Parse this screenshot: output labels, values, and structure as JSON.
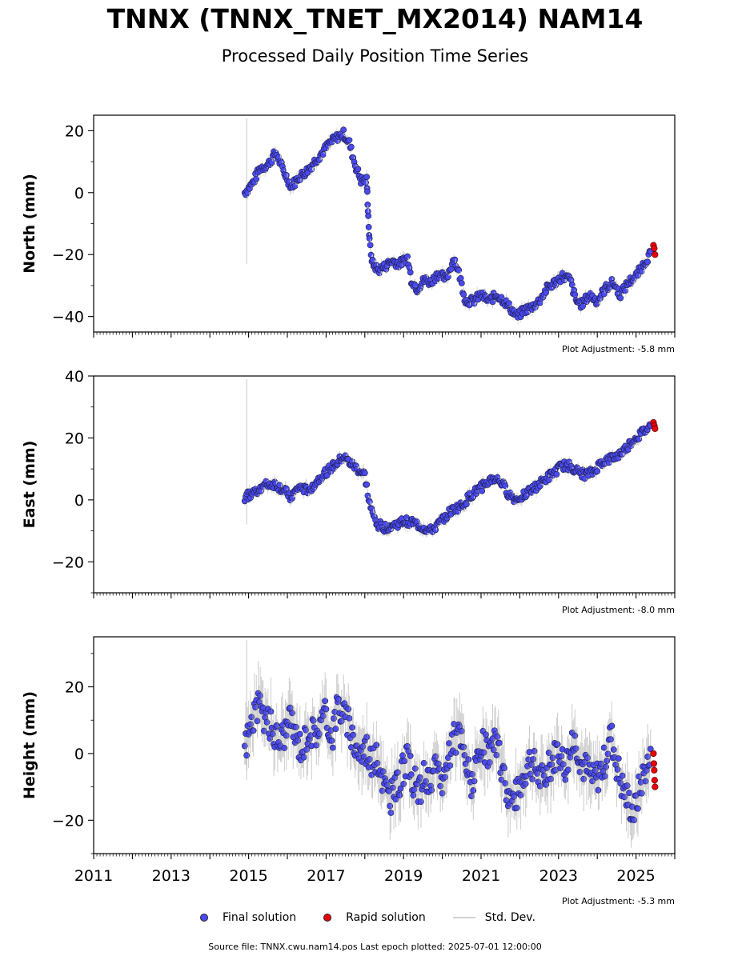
{
  "header": {
    "title": "TNNX (TNNX_TNET_MX2014) NAM14",
    "subtitle": "Processed Daily Position Time Series"
  },
  "legend": {
    "final": "Final solution",
    "rapid": "Rapid solution",
    "std": "Std. Dev."
  },
  "footer": {
    "source": "Source file: TNNX.cwu.nam14.pos  Last epoch plotted: 2025-07-01 12:00:00"
  },
  "colors": {
    "final": "#4a4af0",
    "rapid": "#e8000b",
    "std": "#d3d3d3"
  },
  "chart_data": [
    {
      "type": "scatter",
      "ylabel": "North (mm)",
      "adjustment": "Plot Adjustment: -5.8 mm",
      "xlim": [
        2011,
        2026
      ],
      "ylim": [
        -45,
        25
      ],
      "yticks": [
        -40,
        -20,
        0,
        20
      ],
      "series": [
        {
          "name": "Final solution",
          "x": [
            2014.9,
            2015.1,
            2015.3,
            2015.5,
            2015.7,
            2015.9,
            2016.1,
            2016.3,
            2016.5,
            2016.7,
            2016.9,
            2017.1,
            2017.3,
            2017.45,
            2017.6,
            2017.75,
            2017.9,
            2018.05,
            2018.08,
            2018.12,
            2018.2,
            2018.35,
            2018.5,
            2018.7,
            2018.9,
            2019.1,
            2019.2,
            2019.35,
            2019.55,
            2019.7,
            2019.9,
            2020.1,
            2020.3,
            2020.45,
            2020.6,
            2020.8,
            2021.0,
            2021.2,
            2021.4,
            2021.6,
            2021.8,
            2021.95,
            2022.1,
            2022.3,
            2022.5,
            2022.7,
            2022.9,
            2023.1,
            2023.3,
            2023.45,
            2023.6,
            2023.8,
            2024.0,
            2024.2,
            2024.4,
            2024.6,
            2024.8,
            2025.0,
            2025.2,
            2025.4
          ],
          "y": [
            0,
            3,
            8,
            9,
            13,
            7,
            2,
            5,
            7,
            10,
            13,
            16,
            18,
            19,
            16,
            9,
            4,
            4,
            -5,
            -16,
            -23,
            -25,
            -24,
            -22,
            -23,
            -21,
            -28,
            -31,
            -28,
            -29,
            -26,
            -28,
            -21,
            -27,
            -35,
            -35,
            -33,
            -35,
            -33,
            -35,
            -38,
            -40,
            -38,
            -37,
            -35,
            -31,
            -29,
            -27,
            -28,
            -35,
            -36,
            -33,
            -35,
            -31,
            -29,
            -33,
            -29,
            -27,
            -23,
            -19
          ]
        },
        {
          "name": "Rapid solution",
          "x": [
            2025.45,
            2025.47,
            2025.49
          ],
          "y": [
            -17,
            -18,
            -20
          ]
        }
      ]
    },
    {
      "type": "scatter",
      "ylabel": "East (mm)",
      "adjustment": "Plot Adjustment: -8.0 mm",
      "xlim": [
        2011,
        2026
      ],
      "ylim": [
        -30,
        40
      ],
      "yticks": [
        -20,
        0,
        20,
        40
      ],
      "series": [
        {
          "name": "Final solution",
          "x": [
            2014.9,
            2015.1,
            2015.3,
            2015.5,
            2015.7,
            2015.9,
            2016.1,
            2016.3,
            2016.5,
            2016.7,
            2016.9,
            2017.1,
            2017.3,
            2017.45,
            2017.6,
            2017.8,
            2018.0,
            2018.1,
            2018.2,
            2018.35,
            2018.5,
            2018.8,
            2019.0,
            2019.2,
            2019.5,
            2019.7,
            2019.9,
            2020.1,
            2020.3,
            2020.5,
            2020.7,
            2020.9,
            2021.1,
            2021.3,
            2021.5,
            2021.7,
            2021.9,
            2022.1,
            2022.3,
            2022.5,
            2022.7,
            2022.9,
            2023.1,
            2023.3,
            2023.5,
            2023.7,
            2023.9,
            2024.1,
            2024.3,
            2024.5,
            2024.7,
            2024.9,
            2025.1,
            2025.3,
            2025.4
          ],
          "y": [
            1,
            2,
            4,
            5,
            5,
            3,
            1,
            4,
            3,
            5,
            8,
            10,
            12,
            14,
            12,
            10,
            8,
            0,
            -5,
            -8,
            -9,
            -8,
            -7,
            -7,
            -9,
            -10,
            -8,
            -5,
            -3,
            -2,
            1,
            3,
            5,
            7,
            6,
            2,
            0,
            2,
            3,
            5,
            7,
            9,
            11,
            11,
            9,
            8,
            9,
            12,
            13,
            14,
            16,
            19,
            21,
            23,
            24
          ]
        },
        {
          "name": "Rapid solution",
          "x": [
            2025.45,
            2025.47,
            2025.49
          ],
          "y": [
            25,
            24,
            23
          ]
        }
      ]
    },
    {
      "type": "scatter",
      "ylabel": "Height (mm)",
      "adjustment": "Plot Adjustment: -5.3 mm",
      "xlim": [
        2011,
        2026
      ],
      "ylim": [
        -30,
        35
      ],
      "yticks": [
        -20,
        0,
        20
      ],
      "xticks": [
        2011,
        2013,
        2015,
        2017,
        2019,
        2021,
        2023,
        2025
      ],
      "series": [
        {
          "name": "Final solution",
          "x": [
            2014.9,
            2015.05,
            2015.2,
            2015.35,
            2015.5,
            2015.65,
            2015.8,
            2015.95,
            2016.1,
            2016.25,
            2016.4,
            2016.55,
            2016.7,
            2016.85,
            2017.0,
            2017.15,
            2017.3,
            2017.45,
            2017.6,
            2017.75,
            2017.9,
            2018.05,
            2018.2,
            2018.35,
            2018.5,
            2018.65,
            2018.8,
            2018.95,
            2019.1,
            2019.25,
            2019.4,
            2019.55,
            2019.7,
            2019.85,
            2020.0,
            2020.15,
            2020.3,
            2020.45,
            2020.6,
            2020.75,
            2020.9,
            2021.05,
            2021.2,
            2021.35,
            2021.5,
            2021.65,
            2021.8,
            2021.95,
            2022.1,
            2022.25,
            2022.4,
            2022.55,
            2022.7,
            2022.85,
            2023.0,
            2023.15,
            2023.3,
            2023.45,
            2023.6,
            2023.75,
            2023.9,
            2024.05,
            2024.2,
            2024.35,
            2024.5,
            2024.65,
            2024.8,
            2024.95,
            2025.1,
            2025.25,
            2025.4
          ],
          "y": [
            2,
            8,
            14,
            12,
            10,
            6,
            4,
            7,
            10,
            4,
            2,
            8,
            6,
            9,
            12,
            5,
            15,
            12,
            8,
            3,
            0,
            2,
            -3,
            -2,
            -9,
            -14,
            -11,
            -6,
            -2,
            -8,
            -12,
            -6,
            -10,
            -4,
            -8,
            -3,
            4,
            6,
            -3,
            -8,
            -4,
            2,
            0,
            3,
            -2,
            -10,
            -14,
            -12,
            -6,
            -2,
            -4,
            -8,
            -6,
            -2,
            2,
            -4,
            0,
            4,
            -3,
            -5,
            -8,
            -6,
            -2,
            6,
            -3,
            -10,
            -14,
            -18,
            -10,
            -4,
            -2
          ]
        },
        {
          "name": "Rapid solution",
          "x": [
            2025.45,
            2025.46,
            2025.47,
            2025.48,
            2025.49
          ],
          "y": [
            0,
            -3,
            -5,
            -8,
            -10
          ]
        }
      ]
    }
  ]
}
